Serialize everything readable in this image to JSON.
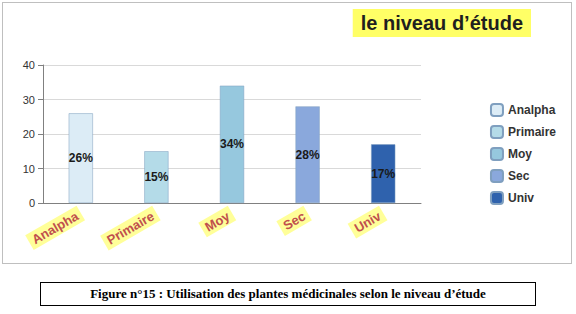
{
  "chart_data": {
    "type": "bar",
    "title": "le niveau d’étude",
    "categories": [
      "Analpha",
      "Primaire",
      "Moy",
      "Sec",
      "Univ"
    ],
    "values": [
      26,
      15,
      34,
      28,
      17
    ],
    "value_labels": [
      "26%",
      "15%",
      "34%",
      "28%",
      "17%"
    ],
    "colors": [
      "#dcecf6",
      "#b4dbe8",
      "#96c8de",
      "#8aa8dc",
      "#2f62ad"
    ],
    "ylim": [
      0,
      40
    ],
    "yticks": [
      0,
      10,
      20,
      30,
      40
    ],
    "grid": true,
    "legend": "right",
    "data_labels": true
  },
  "caption": "Figure n°15 : Utilisation des plantes médicinales selon le niveau d’étude"
}
